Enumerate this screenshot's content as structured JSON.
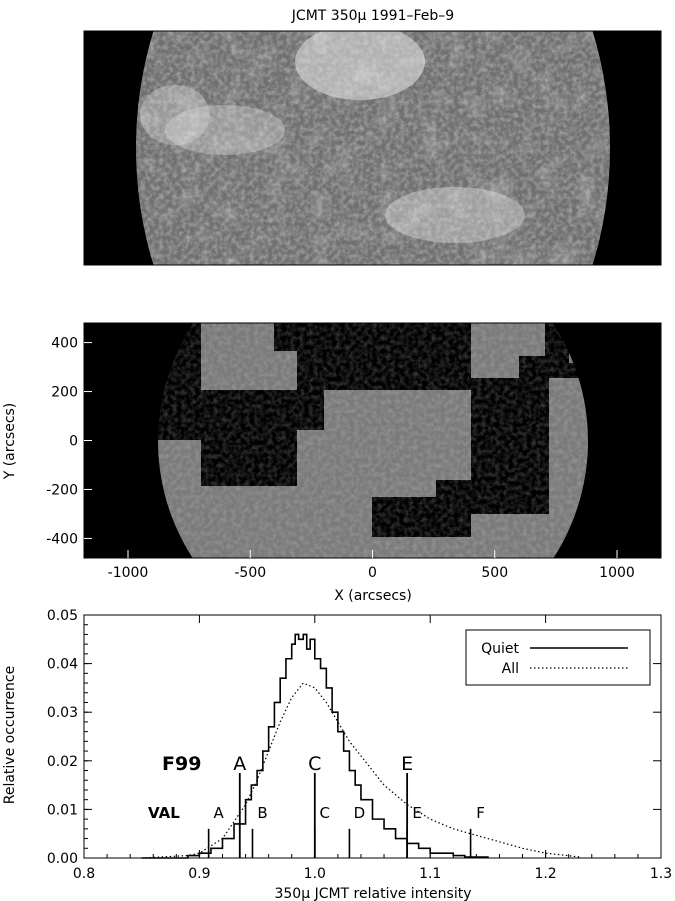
{
  "figure": {
    "title": "JCMT 350μ 1991–Feb–9"
  },
  "panel_middle": {
    "ylabel": "Y (arcsecs)",
    "xlabel": "X (arcsecs)",
    "xticks": [
      "-1000",
      "-500",
      "0",
      "500",
      "1000"
    ],
    "yticks": [
      "400",
      "200",
      "0",
      "-200",
      "-400"
    ]
  },
  "chart_data": [
    {
      "type": "image",
      "description_panel": "top",
      "colors": {
        "background": "#000000"
      }
    },
    {
      "type": "image",
      "description_panel": "middle",
      "xlim": [
        -1180,
        1180
      ],
      "ylim": [
        -480,
        480
      ]
    },
    {
      "type": "line",
      "xlabel": "350μ JCMT relative intensity",
      "ylabel": "Relative occurrence",
      "xlim": [
        0.8,
        1.3
      ],
      "ylim": [
        0.0,
        0.05
      ],
      "xticks": [
        "0.8",
        "0.9",
        "1.0",
        "1.1",
        "1.2",
        "1.3"
      ],
      "yticks": [
        "0.00",
        "0.01",
        "0.02",
        "0.03",
        "0.04",
        "0.05"
      ],
      "legend_position": "top-right",
      "series": [
        {
          "name": "Quiet",
          "style": "solid-step",
          "x": [
            0.85,
            0.89,
            0.9,
            0.91,
            0.92,
            0.93,
            0.94,
            0.945,
            0.95,
            0.955,
            0.96,
            0.965,
            0.97,
            0.975,
            0.98,
            0.983,
            0.986,
            0.99,
            0.993,
            0.996,
            1.0,
            1.005,
            1.01,
            1.015,
            1.02,
            1.025,
            1.03,
            1.035,
            1.04,
            1.05,
            1.06,
            1.07,
            1.08,
            1.09,
            1.1,
            1.12,
            1.13,
            1.15
          ],
          "y": [
            0.0,
            0.0005,
            0.001,
            0.002,
            0.004,
            0.007,
            0.012,
            0.015,
            0.018,
            0.022,
            0.027,
            0.032,
            0.037,
            0.041,
            0.044,
            0.046,
            0.045,
            0.046,
            0.043,
            0.045,
            0.041,
            0.039,
            0.035,
            0.03,
            0.026,
            0.022,
            0.018,
            0.015,
            0.012,
            0.008,
            0.006,
            0.004,
            0.003,
            0.002,
            0.001,
            0.0005,
            0.0002,
            0.0
          ]
        },
        {
          "name": "All",
          "style": "dotted",
          "x": [
            0.85,
            0.89,
            0.9,
            0.92,
            0.94,
            0.95,
            0.96,
            0.97,
            0.98,
            0.99,
            1.0,
            1.01,
            1.02,
            1.03,
            1.04,
            1.05,
            1.06,
            1.08,
            1.1,
            1.12,
            1.15,
            1.18,
            1.2,
            1.23
          ],
          "y": [
            0.0,
            0.0005,
            0.001,
            0.004,
            0.011,
            0.016,
            0.022,
            0.028,
            0.033,
            0.036,
            0.035,
            0.032,
            0.028,
            0.024,
            0.021,
            0.018,
            0.015,
            0.011,
            0.008,
            0.006,
            0.004,
            0.002,
            0.001,
            0.0002
          ]
        }
      ],
      "annotations": {
        "F99": {
          "label": "F99",
          "markers": [
            {
              "label": "A",
              "x": 0.935,
              "y_top": 0.0175
            },
            {
              "label": "C",
              "x": 1.0,
              "y_top": 0.0175
            },
            {
              "label": "E",
              "x": 1.08,
              "y_top": 0.0175
            }
          ]
        },
        "VAL": {
          "label": "VAL",
          "markers": [
            {
              "label": "A",
              "x": 0.908,
              "y_top": 0.006
            },
            {
              "label": "B",
              "x": 0.946,
              "y_top": 0.006
            },
            {
              "label": "C",
              "x": 1.0,
              "y_top": 0.006
            },
            {
              "label": "D",
              "x": 1.03,
              "y_top": 0.006
            },
            {
              "label": "E",
              "x": 1.08,
              "y_top": 0.006
            },
            {
              "label": "F",
              "x": 1.135,
              "y_top": 0.006
            }
          ]
        }
      }
    }
  ]
}
